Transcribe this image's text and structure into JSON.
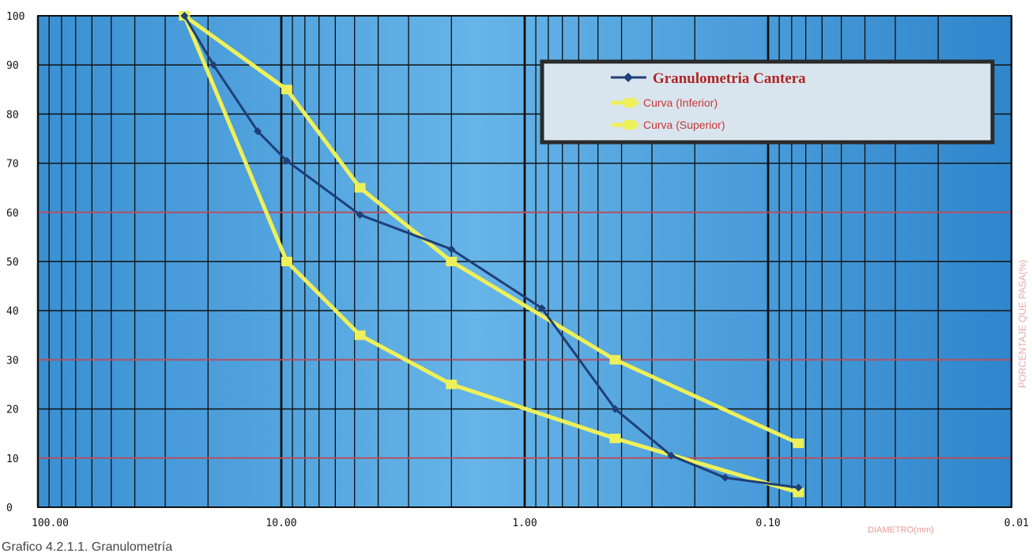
{
  "caption": "Grafico 4.2.1.1. Granulometría",
  "chart_data": {
    "type": "line",
    "x_scale": "log",
    "x_reversed": true,
    "xlim": [
      100,
      0.01
    ],
    "ylim": [
      0,
      100
    ],
    "xlabel": "DIAMETRO(mm)",
    "ylabel": "PORCENTAJE QUE PASA(%)",
    "x_ticks": [
      "100.00",
      "10.00",
      "1.00",
      "0.10",
      "0.01"
    ],
    "y_ticks": [
      "0",
      "10",
      "20",
      "30",
      "40",
      "50",
      "60",
      "70",
      "80",
      "90",
      "100"
    ],
    "grid": true,
    "legend_position": "top-right",
    "series": [
      {
        "name": "Granulometria Cantera",
        "color": "#1f3f78",
        "markers": true,
        "x": [
          25.0,
          19.0,
          12.5,
          9.5,
          4.75,
          2.0,
          0.85,
          0.425,
          0.25,
          0.15,
          0.075
        ],
        "y": [
          100,
          90,
          76.5,
          70.5,
          59.5,
          52.5,
          40.5,
          20,
          10.5,
          6,
          4
        ]
      },
      {
        "name": "Curva  (Inferior)",
        "color": "#eef05a",
        "markers": true,
        "x": [
          25.0,
          9.5,
          4.75,
          2.0,
          0.425,
          0.075
        ],
        "y": [
          100,
          50,
          35,
          25,
          14,
          3
        ]
      },
      {
        "name": "Curva  (Superior)",
        "color": "#eef05a",
        "markers": true,
        "x": [
          25.0,
          9.5,
          4.75,
          2.0,
          0.425,
          0.075
        ],
        "y": [
          100,
          85,
          65,
          50,
          30,
          13
        ]
      }
    ]
  }
}
